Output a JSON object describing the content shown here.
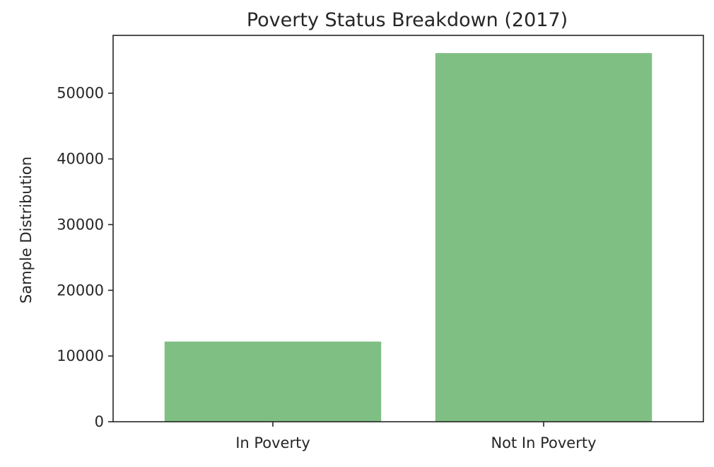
{
  "chart_data": {
    "type": "bar",
    "title": "Poverty Status Breakdown (2017)",
    "xlabel": "",
    "ylabel": "Sample Distribution",
    "categories": [
      "In Poverty",
      "Not In Poverty"
    ],
    "values": [
      12200,
      56100
    ],
    "ylim": [
      0,
      58800
    ],
    "yticks": [
      0,
      10000,
      20000,
      30000,
      40000,
      50000
    ],
    "yticklabels": [
      "0",
      "10000",
      "20000",
      "30000",
      "40000",
      "50000"
    ],
    "bar_color": "#7fbf84",
    "grid": false,
    "legend": "none"
  }
}
